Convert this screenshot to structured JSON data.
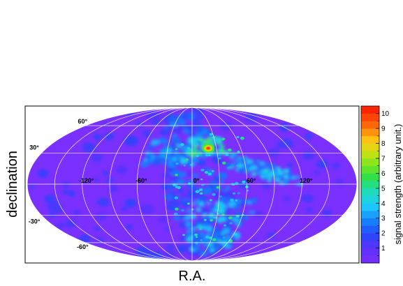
{
  "chart_data": {
    "type": "heatmap",
    "projection": "mollweide (all-sky)",
    "xlabel": "R.A.",
    "ylabel": "declination",
    "colorbar_label": "signal strength (arbitrary unit.)",
    "colorbar_range": [
      0,
      10.5
    ],
    "colorbar_ticks": [
      "1",
      "2",
      "3",
      "4",
      "5",
      "6",
      "7",
      "8",
      "9",
      "10"
    ],
    "ra_tick_labels": [
      "-120°",
      "-60°",
      "0°",
      "60°",
      "120°"
    ],
    "dec_tick_labels": [
      "60°",
      "30°",
      "-30°",
      "-60°"
    ],
    "grid": true,
    "background_level": 0.5,
    "peak": {
      "ra": 20,
      "dec": 35,
      "value": 10
    },
    "colors": {
      "background": "#7a30ff",
      "low": "#2050ff",
      "mid": "#20d0ff",
      "high": "#ff2000"
    }
  }
}
